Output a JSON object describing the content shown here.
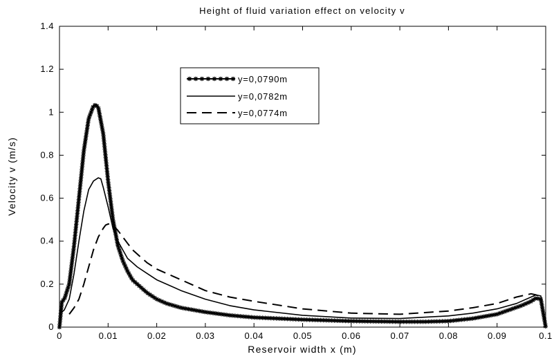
{
  "chart_data": {
    "type": "line",
    "title": "Height of fluid variation effect on velocity v",
    "xlabel": "Reservoir width x (m)",
    "ylabel": "Velocity v (m/s)",
    "xlim": [
      0,
      0.1
    ],
    "ylim": [
      0,
      1.4
    ],
    "xticks": [
      0,
      0.01,
      0.02,
      0.03,
      0.04,
      0.05,
      0.06,
      0.07,
      0.08,
      0.09,
      0.1
    ],
    "xtick_labels": [
      "0",
      "0.01",
      "0.02",
      "0.03",
      "0.04",
      "0.05",
      "0.06",
      "0.07",
      "0.08",
      "0.09",
      "0.1"
    ],
    "yticks": [
      0,
      0.2,
      0.4,
      0.6,
      0.8,
      1,
      1.2,
      1.4
    ],
    "ytick_labels": [
      "0",
      "0.2",
      "0.4",
      "0.6",
      "0.8",
      "1",
      "1.2",
      "1.4"
    ],
    "grid": false,
    "legend_position": "top-center",
    "series": [
      {
        "name": "y=0,0790m",
        "style": "solid-with-star-markers",
        "color": "#000000",
        "x": [
          0,
          0.0005,
          0.001,
          0.002,
          0.003,
          0.004,
          0.005,
          0.006,
          0.007,
          0.0075,
          0.008,
          0.009,
          0.01,
          0.011,
          0.012,
          0.013,
          0.014,
          0.015,
          0.016,
          0.018,
          0.02,
          0.022,
          0.025,
          0.03,
          0.035,
          0.04,
          0.05,
          0.06,
          0.07,
          0.075,
          0.08,
          0.085,
          0.09,
          0.095,
          0.097,
          0.098,
          0.099,
          0.1
        ],
        "y": [
          0,
          0.12,
          0.13,
          0.2,
          0.38,
          0.6,
          0.82,
          0.97,
          1.03,
          1.035,
          1.02,
          0.9,
          0.68,
          0.5,
          0.38,
          0.31,
          0.26,
          0.22,
          0.2,
          0.16,
          0.13,
          0.11,
          0.09,
          0.07,
          0.055,
          0.045,
          0.035,
          0.028,
          0.025,
          0.025,
          0.028,
          0.04,
          0.06,
          0.1,
          0.12,
          0.135,
          0.13,
          0
        ]
      },
      {
        "name": "y=0,0782m",
        "style": "solid",
        "color": "#000000",
        "x": [
          0,
          0.0005,
          0.001,
          0.002,
          0.003,
          0.004,
          0.005,
          0.006,
          0.007,
          0.008,
          0.0085,
          0.009,
          0.01,
          0.011,
          0.012,
          0.013,
          0.014,
          0.016,
          0.018,
          0.02,
          0.025,
          0.03,
          0.035,
          0.04,
          0.05,
          0.06,
          0.07,
          0.08,
          0.085,
          0.09,
          0.094,
          0.097,
          0.098,
          0.099,
          0.1
        ],
        "y": [
          0.06,
          0.07,
          0.08,
          0.13,
          0.25,
          0.4,
          0.54,
          0.64,
          0.68,
          0.695,
          0.69,
          0.65,
          0.56,
          0.46,
          0.4,
          0.36,
          0.32,
          0.28,
          0.25,
          0.22,
          0.17,
          0.13,
          0.1,
          0.08,
          0.055,
          0.042,
          0.04,
          0.052,
          0.065,
          0.085,
          0.11,
          0.14,
          0.15,
          0.145,
          0
        ]
      },
      {
        "name": "y=0,0774m",
        "style": "dashed",
        "color": "#000000",
        "x": [
          0.002,
          0.003,
          0.004,
          0.005,
          0.006,
          0.007,
          0.008,
          0.009,
          0.0095,
          0.01,
          0.0105,
          0.011,
          0.012,
          0.013,
          0.014,
          0.015,
          0.016,
          0.018,
          0.02,
          0.025,
          0.03,
          0.035,
          0.04,
          0.05,
          0.06,
          0.07,
          0.08,
          0.085,
          0.09,
          0.094,
          0.097,
          0.098,
          0.099,
          0.1
        ],
        "y": [
          0.06,
          0.09,
          0.13,
          0.2,
          0.28,
          0.36,
          0.42,
          0.46,
          0.475,
          0.48,
          0.48,
          0.475,
          0.45,
          0.42,
          0.39,
          0.36,
          0.34,
          0.3,
          0.27,
          0.22,
          0.17,
          0.14,
          0.12,
          0.085,
          0.065,
          0.06,
          0.075,
          0.09,
          0.11,
          0.14,
          0.155,
          0.15,
          0.14,
          0
        ]
      }
    ]
  }
}
